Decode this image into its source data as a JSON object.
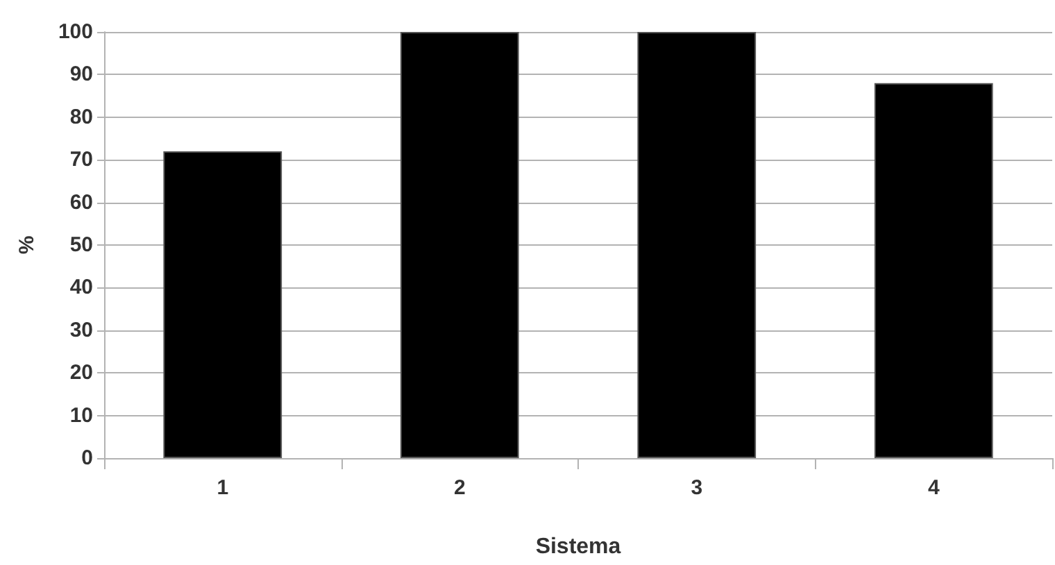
{
  "chart_data": {
    "type": "bar",
    "xlabel": "Sistema",
    "ylabel": "%",
    "categories": [
      "1",
      "2",
      "3",
      "4"
    ],
    "series": [
      {
        "color": "#000000",
        "values": [
          72,
          100,
          100,
          88
        ]
      }
    ],
    "ylim": [
      0,
      100
    ],
    "yticks": [
      0,
      10,
      20,
      30,
      40,
      50,
      60,
      70,
      80,
      90,
      100
    ],
    "grid": "y"
  }
}
